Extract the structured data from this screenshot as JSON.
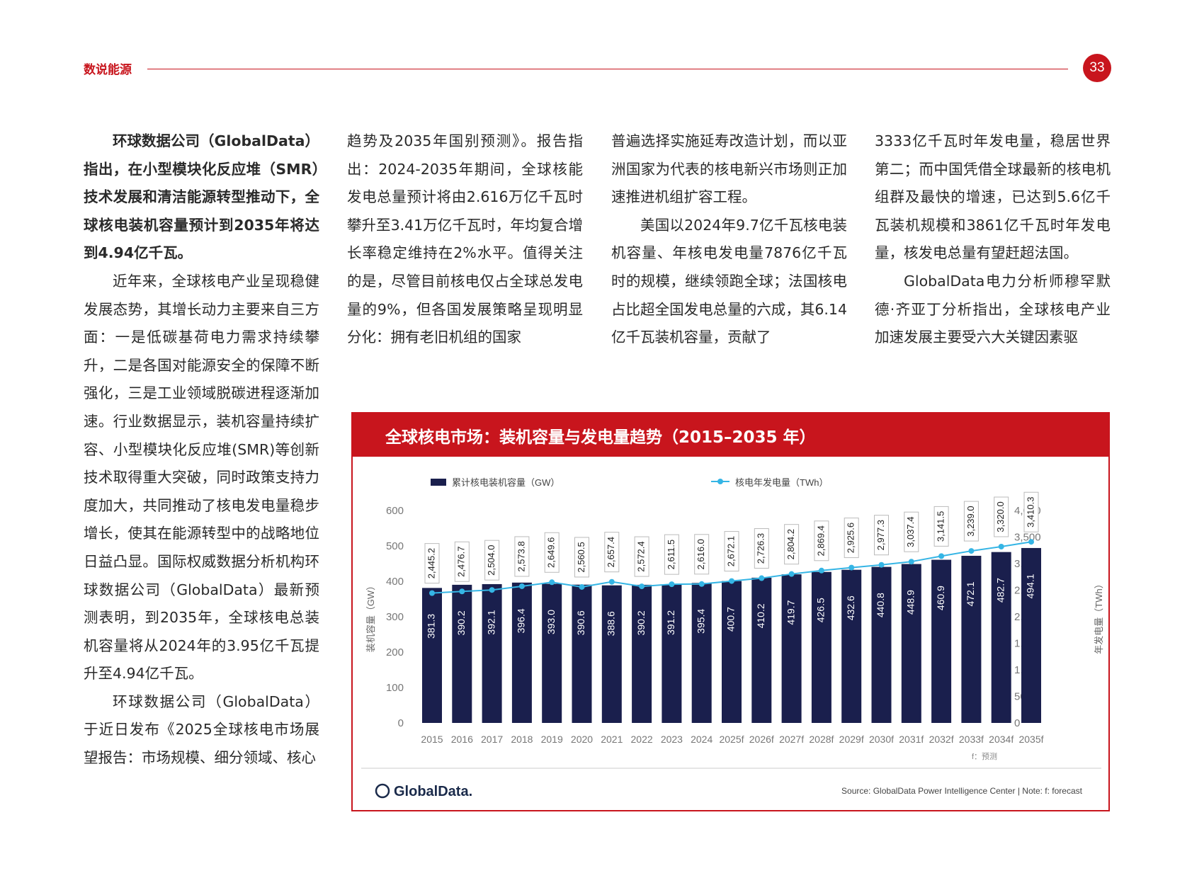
{
  "header": {
    "section_label": "数说能源",
    "page_number": "33"
  },
  "columns": {
    "col1": [
      "环球数据公司（GlobalData）指出，在小型模块化反应堆（SMR）技术发展和清洁能源转型推动下，全球核电装机容量预计到2035年将达到4.94亿千瓦。",
      "近年来，全球核电产业呈现稳健发展态势，其增长动力主要来自三方面：一是低碳基荷电力需求持续攀升，二是各国对能源安全的保障不断强化，三是工业领域脱碳进程逐渐加速。行业数据显示，装机容量持续扩容、小型模块化反应堆(SMR)等创新技术取得重大突破，同时政策支持力度加大，共同推动了核电发电量稳步增长，使其在能源转型中的战略地位日益凸显。国际权威数据分析机构环球数据公司（GlobalData）最新预测表明，到2035年，全球核电总装机容量将从2024年的3.95亿千瓦提升至4.94亿千瓦。",
      "环球数据公司（GlobalData）于近日发布《2025全球核电市场展望报告：市场规模、细分领域、核心"
    ],
    "col2": [
      "趋势及2035年国别预测》。报告指出：2024-2035年期间，全球核能发电总量预计将由2.616万亿千瓦时攀升至3.41万亿千瓦时，年均复合增长率稳定维持在2%水平。值得关注的是，尽管目前核电仅占全球总发电量的9%，但各国发展策略呈现明显分化：拥有老旧机组的国家"
    ],
    "col3": [
      "普遍选择实施延寿改造计划，而以亚洲国家为代表的核电新兴市场则正加速推进机组扩容工程。",
      "美国以2024年9.7亿千瓦核电装机容量、年核电发电量7876亿千瓦时的规模，继续领跑全球；法国核电占比超全国发电总量的六成，其6.14亿千瓦装机容量，贡献了"
    ],
    "col4": [
      "3333亿千瓦时年发电量，稳居世界第二；而中国凭借全球最新的核电机组群及最快的增速，已达到5.6亿千瓦装机规模和3861亿千瓦时年发电量，核发电总量有望赶超法国。",
      "GlobalData电力分析师穆罕默德·齐亚丁分析指出，全球核电产业加速发展主要受六大关键因素驱"
    ]
  },
  "chart_data": {
    "type": "bar",
    "title": "全球核电市场：装机容量与发电量趋势（2015–2035 年）",
    "categories": [
      "2015",
      "2016",
      "2017",
      "2018",
      "2019",
      "2020",
      "2021",
      "2022",
      "2023",
      "2024",
      "2025f",
      "2026f",
      "2027f",
      "2028f",
      "2029f",
      "2030f",
      "2031f",
      "2032f",
      "2033f",
      "2034f",
      "2035f"
    ],
    "series": [
      {
        "name": "累计核电装机容量（GW）",
        "type": "bar",
        "axis": "left",
        "color": "#1a1f4d",
        "values": [
          381.3,
          390.2,
          392.1,
          396.4,
          393.0,
          390.6,
          388.6,
          390.2,
          391.2,
          395.4,
          400.7,
          410.2,
          419.7,
          426.5,
          432.6,
          440.8,
          448.9,
          460.9,
          472.1,
          482.7,
          494.1
        ]
      },
      {
        "name": "核电年发电量（TWh）",
        "type": "line",
        "axis": "right",
        "color": "#35b5e5",
        "values": [
          2445.2,
          2476.7,
          2504.0,
          2573.8,
          2649.6,
          2560.5,
          2657.4,
          2572.4,
          2611.5,
          2616.0,
          2672.1,
          2726.3,
          2804.2,
          2869.4,
          2925.6,
          2977.3,
          3037.4,
          3141.5,
          3239.0,
          3320.0,
          3410.3
        ]
      }
    ],
    "ylabel": "装机容量（GW）",
    "ylabel_right": "年发电量（TWh）",
    "ylim": [
      0,
      600
    ],
    "ylim_right": [
      0,
      4000
    ],
    "yticks": [
      "0",
      "100",
      "200",
      "300",
      "400",
      "500",
      "600"
    ],
    "yticks_right": [
      "0",
      "500",
      "1,000",
      "1,500",
      "2,000",
      "2,500",
      "3,000",
      "3,500",
      "4,000"
    ],
    "bar_labels": [
      "381.3",
      "390.2",
      "392.1",
      "396.4",
      "393.0",
      "390.6",
      "388.6",
      "390.2",
      "391.2",
      "395.4",
      "400.7",
      "410.2",
      "419.7",
      "426.5",
      "432.6",
      "440.8",
      "448.9",
      "460.9",
      "472.1",
      "482.7",
      "494.1"
    ],
    "line_labels": [
      "2,445.2",
      "2,476.7",
      "2,504.0",
      "2,573.8",
      "2,649.6",
      "2,560.5",
      "2,657.4",
      "2,572.4",
      "2,611.5",
      "2,616.0",
      "2,672.1",
      "2,726.3",
      "2,804.2",
      "2,869.4",
      "2,925.6",
      "2,977.3",
      "3,037.4",
      "3,141.5",
      "3,239.0",
      "3,320.0",
      "3,410.3"
    ],
    "forecast_note": "f：预测",
    "legend_position": "top",
    "logo_text": "GlobalData.",
    "source": "Source: GlobalData Power Intelligence Center | Note: f: forecast"
  }
}
